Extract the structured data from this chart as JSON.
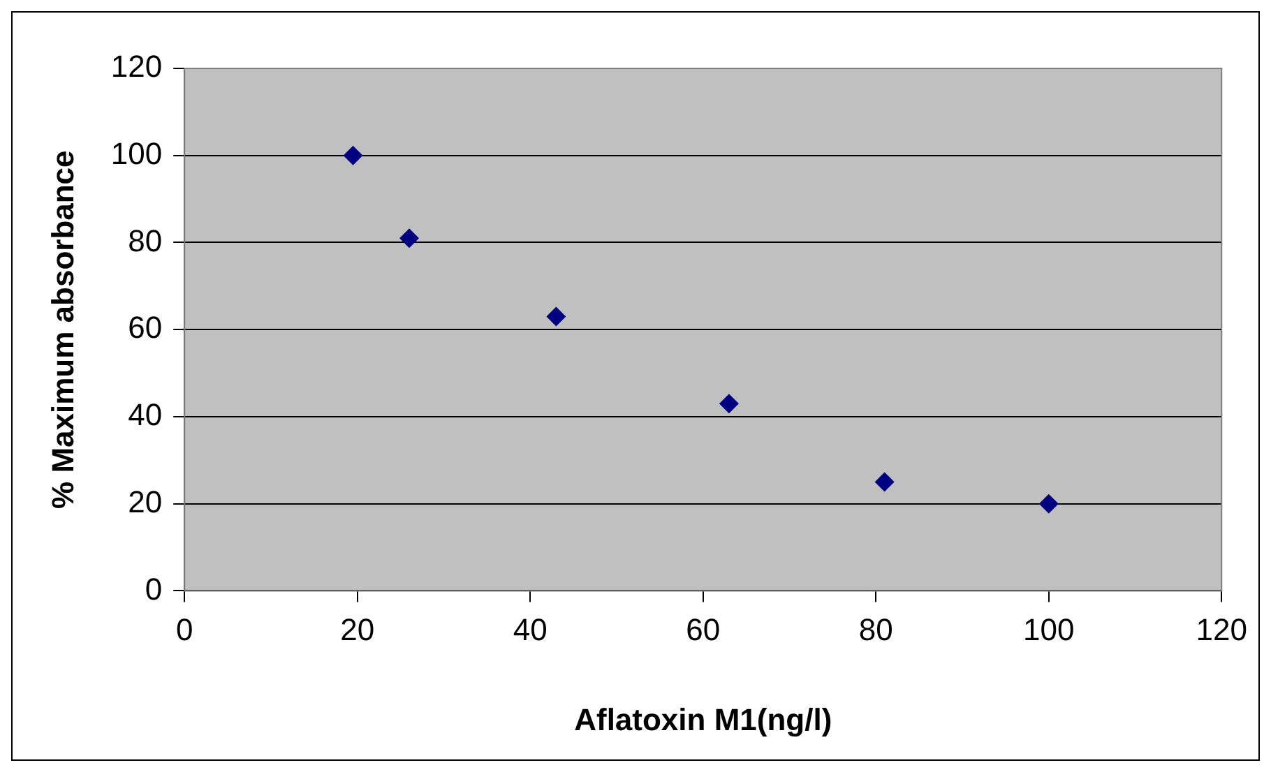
{
  "chart_data": {
    "type": "scatter",
    "xlabel": "Aflatoxin M1(ng/l)",
    "ylabel": "% Maximum absorbance",
    "x": [
      19.5,
      26,
      43,
      63,
      81,
      100
    ],
    "series": [
      {
        "color": "#000080",
        "values": [
          100,
          81,
          63,
          43,
          25,
          20
        ]
      }
    ],
    "xlim": [
      0,
      120
    ],
    "xticks": [
      0,
      20,
      40,
      60,
      80,
      100,
      120
    ],
    "ylim": [
      0,
      120
    ],
    "yticks": [
      0,
      20,
      40,
      60,
      80,
      100,
      120
    ],
    "grid": "y",
    "legend": false,
    "marker": "diamond"
  }
}
